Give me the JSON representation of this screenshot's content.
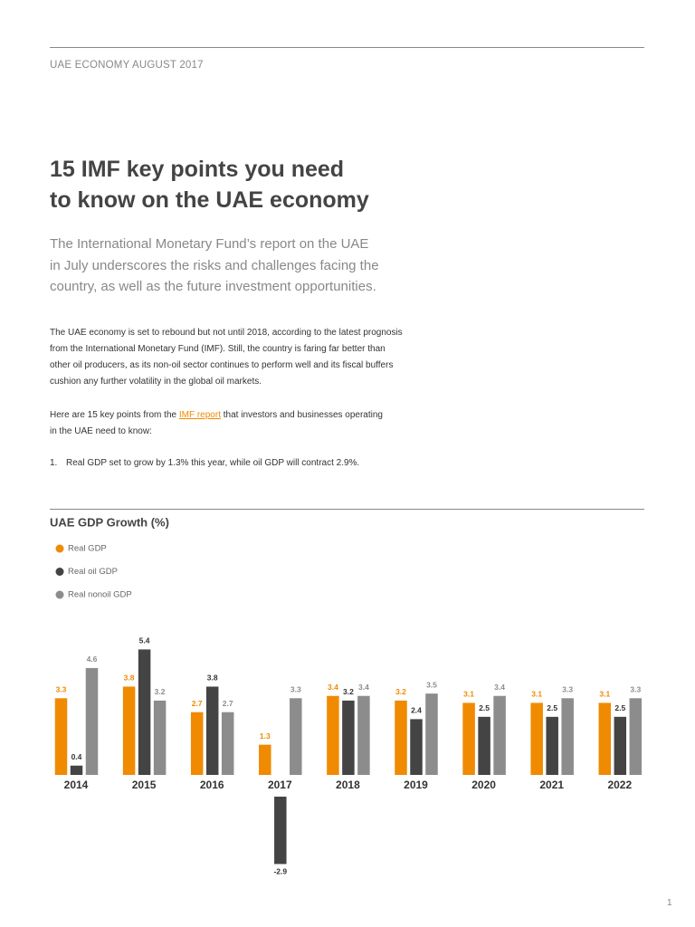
{
  "header": {
    "kicker": "UAE ECONOMY AUGUST 2017",
    "title": [
      "15 IMF key points you need",
      "to know on the UAE economy"
    ],
    "standfirst": [
      "The International Monetary Fund’s report on the UAE",
      "in July underscores the risks and challenges facing the",
      "country, as well as the future investment opportunities."
    ]
  },
  "body": {
    "paragraph_1": [
      "The UAE economy is set to rebound but not until 2018, according to the latest prognosis",
      "from the International Monetary Fund (IMF). Still, the country is faring far better than",
      "other oil producers, as its non-oil sector continues to perform well and its fiscal buffers",
      "cushion any further volatility in the global oil markets."
    ],
    "paragraph_2": {
      "before": "Here are 15 key points from the",
      "link": "IMF report",
      "after": "that investors and businesses operating",
      "line_2": "in the UAE need to know:"
    },
    "list": [
      {
        "number": "1.",
        "text": "Real GDP set to grow by 1.3% this year, while oil GDP will contract 2.9%."
      }
    ]
  },
  "chart_data": {
    "type": "bar",
    "title": "UAE GDP Growth (%)",
    "categories": [
      "2014",
      "2015",
      "2016",
      "2017",
      "2018",
      "2019",
      "2020",
      "2021",
      "2022"
    ],
    "series": [
      {
        "name": "Real GDP",
        "color": "#f08a00",
        "values": [
          3.3,
          3.8,
          2.7,
          1.3,
          3.4,
          3.2,
          3.1,
          3.1,
          3.1
        ]
      },
      {
        "name": "Real oil GDP",
        "color": "#444444",
        "values": [
          0.4,
          5.4,
          3.8,
          -2.9,
          3.2,
          2.4,
          2.5,
          2.5,
          2.5
        ]
      },
      {
        "name": "Real nonoil GDP",
        "color": "#8c8c8c",
        "values": [
          4.6,
          3.2,
          2.7,
          3.3,
          3.4,
          3.5,
          3.4,
          3.3,
          3.3
        ]
      }
    ],
    "ylim": [
      -3,
      6
    ],
    "legend": "top-left"
  },
  "footer": {
    "page_number": "1"
  }
}
